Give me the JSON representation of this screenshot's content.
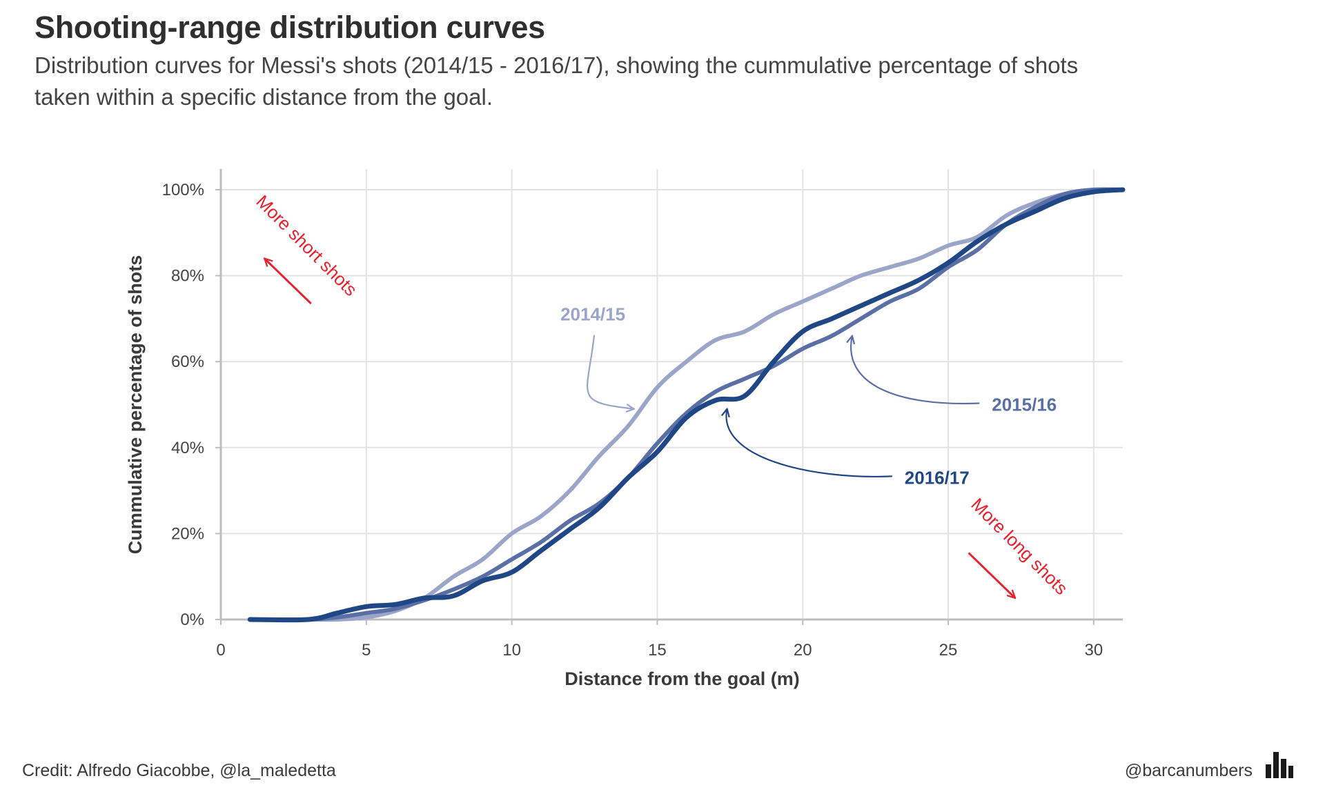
{
  "header": {
    "title": "Shooting-range distribution curves",
    "subtitle": "Distribution curves for Messi's shots (2014/15 - 2016/17), showing the cummulative percentage of shots taken within a specific distance from the goal."
  },
  "footer": {
    "credit": "Credit: Alfredo Giacobbe, @la_maledetta",
    "handle": "@barcanumbers",
    "logo_icon": "bar-chart-icon"
  },
  "colors": {
    "s2014": "#9ba4c9",
    "s2015": "#5a6fa6",
    "s2016": "#1f4685",
    "annotation": "#e8212d",
    "grid": "#e3e3e3"
  },
  "chart_data": {
    "type": "line",
    "title": "Shooting-range distribution curves",
    "xlabel": "Distance from the goal (m)",
    "ylabel": "Cummulative percentage of shots",
    "xlim": [
      0,
      31
    ],
    "ylim": [
      0,
      100
    ],
    "xticks": [
      0,
      5,
      10,
      15,
      20,
      25,
      30
    ],
    "xtick_labels": [
      "0",
      "5",
      "10",
      "15",
      "20",
      "25",
      "30"
    ],
    "yticks": [
      0,
      20,
      40,
      60,
      80,
      100
    ],
    "ytick_labels": [
      "0%",
      "20%",
      "40%",
      "60%",
      "80%",
      "100%"
    ],
    "grid": true,
    "series": [
      {
        "name": "2014/15",
        "x": [
          1,
          3,
          4,
          5,
          6,
          7,
          8,
          9,
          10,
          11,
          12,
          13,
          14,
          15,
          16,
          17,
          18,
          19,
          20,
          21,
          22,
          23,
          24,
          25,
          26,
          27,
          28,
          29,
          30,
          31
        ],
        "y": [
          0,
          0,
          0,
          0.5,
          2,
          5,
          10,
          14,
          20,
          24,
          30,
          38,
          45,
          54,
          60,
          65,
          67,
          71,
          74,
          77,
          80,
          82,
          84,
          87,
          89,
          94,
          97,
          99,
          100,
          100
        ]
      },
      {
        "name": "2015/16",
        "x": [
          1,
          3,
          4,
          5,
          6,
          7,
          8,
          9,
          10,
          11,
          12,
          13,
          14,
          15,
          16,
          17,
          18,
          19,
          20,
          21,
          22,
          23,
          24,
          25,
          26,
          27,
          28,
          29,
          30,
          31
        ],
        "y": [
          0,
          0,
          0.5,
          1.5,
          2.5,
          4.5,
          7,
          10,
          14,
          18,
          23,
          27,
          33,
          41,
          48,
          53,
          56,
          59,
          63,
          66,
          70,
          74,
          77,
          82,
          86,
          92,
          96,
          99,
          100,
          100
        ]
      },
      {
        "name": "2016/17",
        "x": [
          1,
          3,
          4,
          5,
          6,
          7,
          8,
          9,
          10,
          11,
          12,
          13,
          14,
          15,
          16,
          17,
          18,
          19,
          20,
          21,
          22,
          23,
          24,
          25,
          26,
          27,
          28,
          29,
          30,
          31
        ],
        "y": [
          0,
          0,
          1.5,
          3,
          3.5,
          5,
          5.5,
          9,
          11,
          16,
          21,
          26,
          33,
          39,
          47,
          51,
          52,
          60,
          67,
          70,
          73,
          76,
          79,
          83,
          88,
          92,
          95,
          98,
          99.5,
          100
        ]
      }
    ],
    "annotations": [
      {
        "id": "s2014",
        "text": "2014/15",
        "x": 11.6,
        "y": 71,
        "point_x": 14.2,
        "point_y": 49
      },
      {
        "id": "s2015",
        "text": "2015/16",
        "x": 26.5,
        "y": 50,
        "point_x": 21.7,
        "point_y": 66
      },
      {
        "id": "s2016",
        "text": "2016/17",
        "x": 23.5,
        "y": 33,
        "point_x": 17.4,
        "point_y": 49
      }
    ],
    "notes": [
      {
        "id": "short",
        "text": "More short shots",
        "x": 2.8,
        "y": 86,
        "arrow_from": [
          3.1,
          73.5
        ],
        "arrow_to": [
          1.5,
          84
        ]
      },
      {
        "id": "long",
        "text": "More long shots",
        "x": 27.3,
        "y": 16,
        "arrow_from": [
          25.7,
          15.5
        ],
        "arrow_to": [
          27.3,
          5
        ]
      }
    ]
  }
}
